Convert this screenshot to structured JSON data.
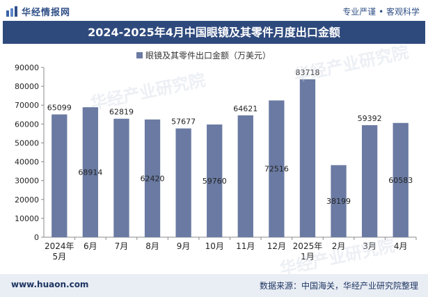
{
  "header": {
    "logo_text": "华经情报网",
    "slogan": "专业严谨 • 客观科学",
    "title": "2024-2025年4月中国眼镜及其零件月度出口金额"
  },
  "footer": {
    "website": "www.huaon.com",
    "source": "数据来源：中国海关，华经产业研究院整理"
  },
  "watermark": {
    "text": "华经产业研究院",
    "url": "www.huaon.com"
  },
  "colors": {
    "bar": "#6a7aa2",
    "title_bg": "#2e4a7d",
    "footer_bg": "#e9edf4"
  },
  "chart_data": {
    "type": "bar",
    "title": "2024-2025年4月中国眼镜及其零件月度出口金额",
    "categories": [
      "2024年\n5月",
      "6月",
      "7月",
      "8月",
      "9月",
      "10月",
      "11月",
      "12月",
      "2025年\n1月",
      "2月",
      "3月",
      "4月"
    ],
    "series": [
      {
        "name": "眼镜及其零件出口金额（万美元）",
        "values": [
          65099,
          68914,
          62819,
          62420,
          57677,
          59760,
          64621,
          72516,
          83718,
          38199,
          59392,
          60583
        ]
      }
    ],
    "label_position": [
      "top",
      "mid",
      "top",
      "mid",
      "top",
      "mid",
      "top",
      "mid",
      "top",
      "mid",
      "top",
      "mid"
    ],
    "ylim": [
      0,
      90000
    ],
    "yticks": [
      0,
      10000,
      20000,
      30000,
      40000,
      50000,
      60000,
      70000,
      80000,
      90000
    ],
    "legend": "top-center",
    "grid": false
  }
}
